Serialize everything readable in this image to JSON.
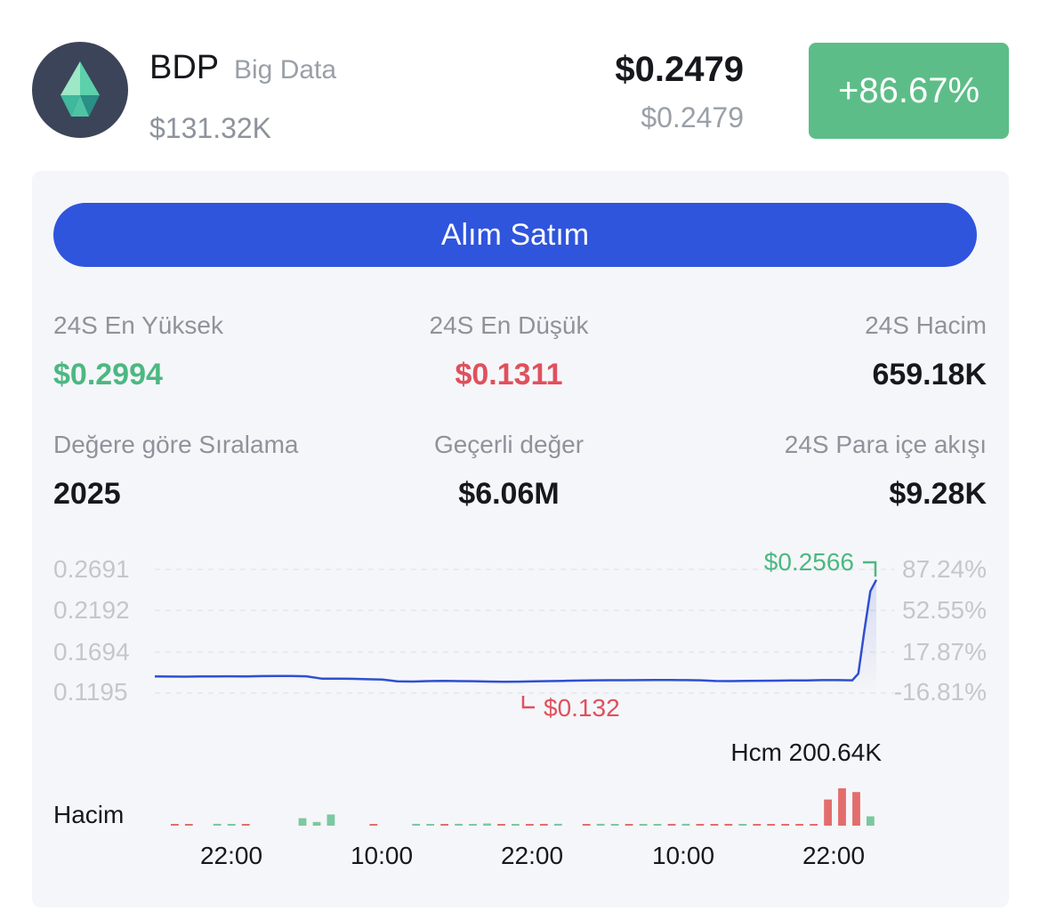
{
  "coin": {
    "symbol": "BDP",
    "name": "Big Data",
    "market_cap": "$131.32K",
    "price": "$0.2479",
    "price_secondary": "$0.2479",
    "change": "+86.67%",
    "icon": "diamond-crystal-icon"
  },
  "trade_button": "Alım Satım",
  "stats": {
    "high_label": "24S En Yüksek",
    "high_value": "$0.2994",
    "low_label": "24S En Düşük",
    "low_value": "$0.1311",
    "volume_label": "24S Hacim",
    "volume_value": "659.18K",
    "rank_label": "Değere göre Sıralama",
    "rank_value": "2025",
    "value_label": "Geçerli değer",
    "value_value": "$6.06M",
    "inflow_label": "24S Para içe akışı",
    "inflow_value": "$9.28K"
  },
  "chart": {
    "left_ticks": [
      "0.2691",
      "0.2192",
      "0.1694",
      "0.1195"
    ],
    "right_ticks": [
      "87.24%",
      "52.55%",
      "17.87%",
      "-16.81%"
    ],
    "high_marker": "$0.2566",
    "low_marker": "$0.132",
    "volume_label": "Hacim",
    "volume_max_label": "Hcm 200.64K",
    "time_labels": [
      "22:00",
      "10:00",
      "22:00",
      "10:00",
      "22:00"
    ]
  },
  "colors": {
    "up": "#4cb882",
    "down": "#e0505d",
    "line": "#2f4fd1",
    "button": "#2f55dd",
    "change_bg": "#5dbd88"
  },
  "chart_data": {
    "type": "line",
    "ylim": [
      0.1195,
      0.2691
    ],
    "grid": true,
    "price_values": [
      0.1405,
      0.1404,
      0.1403,
      0.1406,
      0.1405,
      0.1408,
      0.1407,
      0.141,
      0.1412,
      0.1411,
      0.1408,
      0.138,
      0.138,
      0.1378,
      0.1372,
      0.1368,
      0.1348,
      0.1345,
      0.135,
      0.1353,
      0.135,
      0.1349,
      0.1345,
      0.1341,
      0.1343,
      0.1348,
      0.135,
      0.1353,
      0.1356,
      0.136,
      0.1361,
      0.1361,
      0.1362,
      0.1364,
      0.1363,
      0.1362,
      0.136,
      0.1351,
      0.135,
      0.1352,
      0.1354,
      0.1355,
      0.1357,
      0.1358,
      0.1362,
      0.1362,
      0.136,
      0.144,
      0.195,
      0.243,
      0.2566
    ],
    "volume_up": [
      0,
      0,
      0,
      0,
      0.05,
      0.04,
      0,
      0,
      0,
      0,
      0.2,
      0.1,
      0.3,
      0,
      0,
      0,
      0,
      0,
      0.05,
      0.03,
      0,
      0.05,
      0.04,
      0.06,
      0,
      0.04,
      0,
      0,
      0.05,
      0,
      0,
      0.05,
      0.04,
      0,
      0.03,
      0.04,
      0,
      0.05,
      0,
      0,
      0,
      0.02,
      0,
      0,
      0,
      0,
      0,
      0,
      0,
      0,
      0.25
    ],
    "volume_down": [
      0,
      0.02,
      0.02,
      0,
      0,
      0,
      0.02,
      0,
      0,
      0,
      0,
      0,
      0,
      0,
      0,
      0.02,
      0,
      0,
      0,
      0,
      0.03,
      0,
      0,
      0,
      0.02,
      0,
      0.03,
      0.02,
      0,
      0,
      0.02,
      0,
      0,
      0.02,
      0,
      0,
      0.02,
      0,
      0.02,
      0.02,
      0.02,
      0,
      0.02,
      0.03,
      0.02,
      0.02,
      0.02,
      0.7,
      1.0,
      0.9,
      0
    ]
  }
}
